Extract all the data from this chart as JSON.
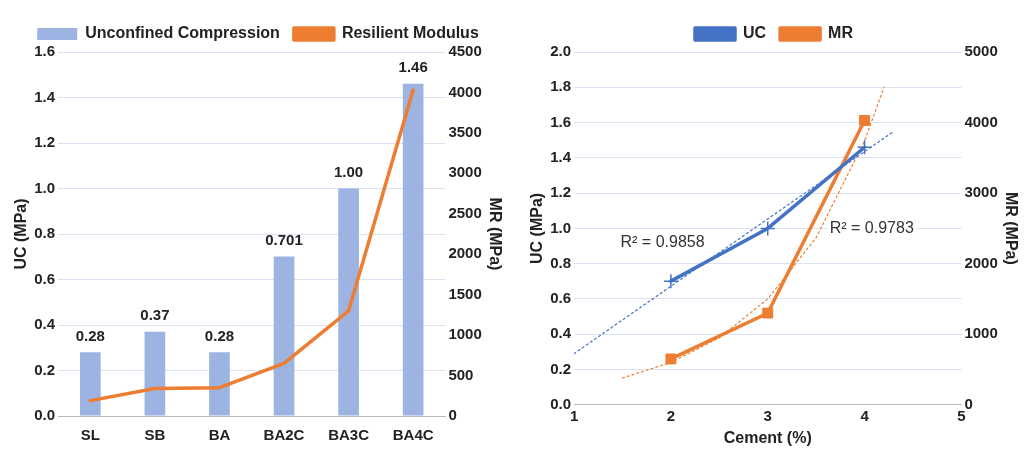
{
  "chart_data": [
    {
      "type": "bar",
      "categories": [
        "SL",
        "SB",
        "BA",
        "BA2C",
        "BA3C",
        "BA4C"
      ],
      "ylabel": "UC (MPa)",
      "y2label": "MR (MPa)",
      "ylim": [
        0,
        1.6
      ],
      "yticks": [
        {
          "value": 0,
          "label": "0.0"
        },
        0.2,
        0.4,
        0.6,
        0.8,
        {
          "value": 1,
          "label": "1.0"
        },
        1.2,
        1.4,
        1.6
      ],
      "y2lim": [
        0,
        4500
      ],
      "y2ticks": [
        0,
        500,
        1000,
        1500,
        2000,
        2500,
        3000,
        3500,
        4000,
        4500
      ],
      "grid": "y",
      "legend": "top",
      "series": [
        {
          "name": "Unconfined Compression",
          "color": "#9db4e3",
          "values": [
            0.28,
            0.37,
            0.28,
            0.701,
            1.0,
            1.46
          ],
          "value_labels": [
            "0.28",
            "0.37",
            "0.28",
            "0.701",
            "1.00",
            "1.46"
          ]
        },
        {
          "name": "Resilient Modulus",
          "type": "line",
          "axis": "y2",
          "color": "#ed7d31",
          "values": [
            190,
            340,
            350,
            650,
            1300,
            4030
          ]
        }
      ]
    },
    {
      "type": "line",
      "xlabel": "Cement (%)",
      "ylabel": "UC (MPa)",
      "y2label": "MR (MPa)",
      "xlim": [
        1,
        5
      ],
      "xticks": [
        1,
        2,
        3,
        4,
        5
      ],
      "ylim": [
        0,
        2
      ],
      "yticks": [
        {
          "value": 0,
          "label": "0.0"
        },
        0.2,
        0.4,
        0.6,
        0.8,
        {
          "value": 1,
          "label": "1.0"
        },
        1.2,
        1.4,
        1.6,
        1.8,
        {
          "value": 2,
          "label": "2.0"
        }
      ],
      "y2lim": [
        0,
        5000
      ],
      "y2ticks": [
        0,
        1000,
        2000,
        3000,
        4000,
        5000
      ],
      "grid": "y",
      "legend": "top",
      "annotations": [
        "R² = 0.9858",
        "R² = 0.9783"
      ],
      "series": [
        {
          "name": "UC",
          "color": "#4472c4",
          "marker": "cross",
          "x": [
            2,
            3,
            4
          ],
          "values": [
            0.701,
            1.0,
            1.46
          ]
        },
        {
          "name": "MR",
          "color": "#ed7d31",
          "marker": "square",
          "axis": "y2",
          "x": [
            2,
            3,
            4
          ],
          "values": [
            650,
            1300,
            4030
          ]
        },
        {
          "color": "#4472c4",
          "line_style": "dotted",
          "x": [
            1,
            4.3
          ],
          "values": [
            0.29,
            1.55
          ]
        },
        {
          "color": "#ed7d31",
          "line_style": "dotted",
          "axis": "y2",
          "x": [
            1.5,
            2,
            2.5,
            3,
            3.5,
            4,
            4.2
          ],
          "values": [
            380,
            600,
            950,
            1500,
            2370,
            3740,
            4500
          ]
        }
      ]
    }
  ]
}
